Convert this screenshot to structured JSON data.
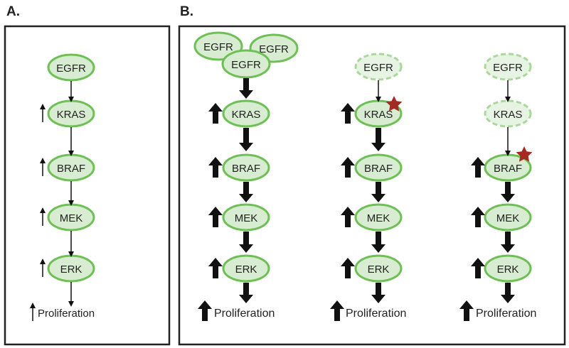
{
  "panels": {
    "a": {
      "label": "A.",
      "nodes": [
        "EGFR",
        "KRAS",
        "BRAF",
        "MEK",
        "ERK"
      ],
      "outcome": "Proliferation"
    },
    "b": {
      "label": "B.",
      "columns": [
        {
          "nodes": [
            "EGFR",
            "EGFR",
            "EGFR",
            "KRAS",
            "BRAF",
            "MEK",
            "ERK"
          ],
          "outcome": "Proliferation",
          "mutation_star": false
        },
        {
          "nodes": [
            "EGFR",
            "KRAS",
            "BRAF",
            "MEK",
            "ERK"
          ],
          "outcome": "Proliferation",
          "mutation_star": true,
          "mutated_node": "KRAS"
        },
        {
          "nodes": [
            "EGFR",
            "KRAS",
            "BRAF",
            "MEK",
            "ERK"
          ],
          "outcome": "Proliferation",
          "mutation_star": true,
          "mutated_node": "BRAF"
        }
      ]
    }
  },
  "colors": {
    "node_fill": "#d7ecd0",
    "node_stroke": "#6fbf57",
    "inactive_stroke": "#a9d89a",
    "star": "#a52a22",
    "arrow": "#111111"
  }
}
